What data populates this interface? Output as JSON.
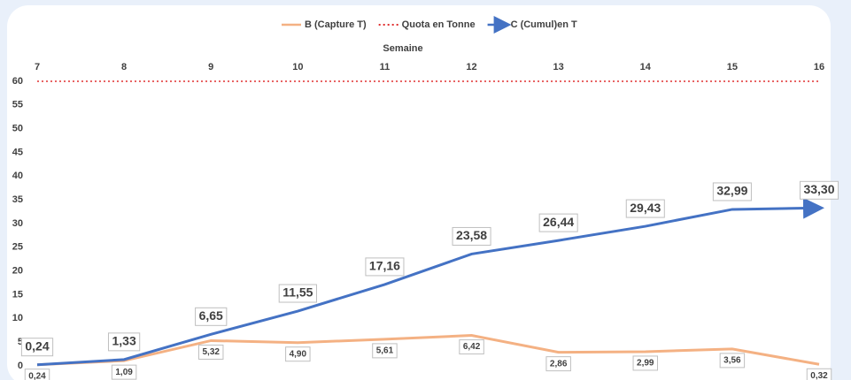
{
  "chart_data": {
    "type": "line",
    "x_label": "Semaine",
    "categories": [
      "7",
      "8",
      "9",
      "10",
      "11",
      "12",
      "13",
      "14",
      "15",
      "16"
    ],
    "ylim": [
      0,
      60
    ],
    "yticks": [
      0,
      5,
      10,
      15,
      20,
      25,
      30,
      35,
      40,
      45,
      50,
      55,
      60
    ],
    "series": [
      {
        "name": "B (Capture T)",
        "color": "#f4b183",
        "style": "solid",
        "values": [
          0.24,
          1.09,
          5.32,
          4.9,
          5.61,
          6.42,
          2.86,
          2.99,
          3.56,
          0.32
        ],
        "value_labels": [
          "0,24",
          "1,09",
          "5,32",
          "4,90",
          "5,61",
          "6,42",
          "2,86",
          "2,99",
          "3,56",
          "0,32"
        ]
      },
      {
        "name": "Quota en Tonne",
        "color": "#e03030",
        "style": "dotted",
        "values": [
          60,
          60,
          60,
          60,
          60,
          60,
          60,
          60,
          60,
          60
        ]
      },
      {
        "name": "C (Cumul)en T",
        "color": "#4472c4",
        "style": "arrow",
        "values": [
          0.24,
          1.33,
          6.65,
          11.55,
          17.16,
          23.58,
          26.44,
          29.43,
          32.99,
          33.3
        ],
        "value_labels": [
          "0,24",
          "1,33",
          "6,65",
          "11,55",
          "17,16",
          "23,58",
          "26,44",
          "29,43",
          "32,99",
          "33,30"
        ]
      }
    ]
  }
}
